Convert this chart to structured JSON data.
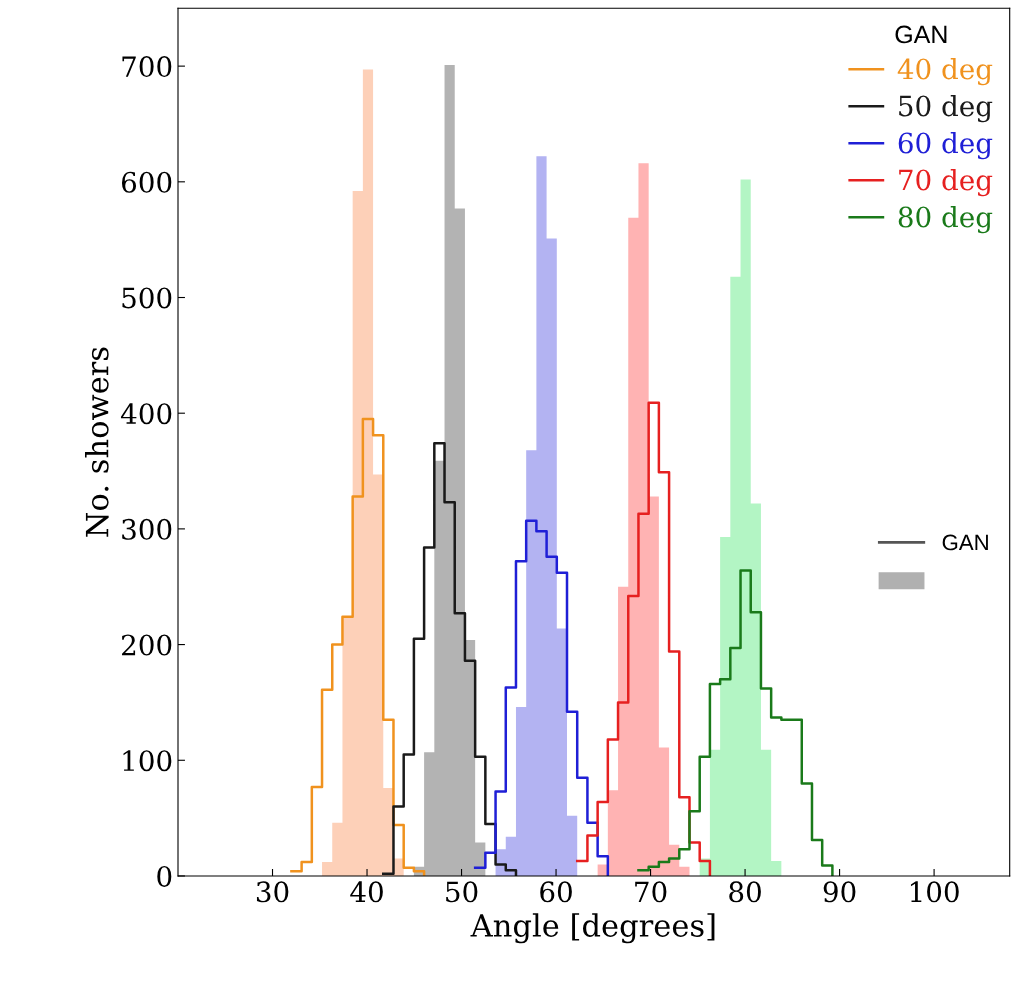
{
  "chart_data": {
    "type": "histogram",
    "xlabel": "Angle [degrees]",
    "ylabel": "No. showers",
    "xlim": [
      20,
      108
    ],
    "ylim": [
      0,
      750
    ],
    "xticks": [
      30,
      40,
      50,
      60,
      70,
      80,
      90,
      100
    ],
    "yticks": [
      0,
      100,
      200,
      300,
      400,
      500,
      600,
      700
    ],
    "legend": "top right",
    "legend_title": "GAN",
    "annotations": [
      "GAN"
    ],
    "grid": false,
    "bins": [
      32.0,
      33.08,
      34.16,
      35.24,
      36.32,
      37.4,
      38.48,
      39.56,
      40.64,
      41.72,
      42.8,
      43.88,
      44.96,
      46.04,
      47.12,
      48.2,
      49.28,
      50.36,
      51.44,
      52.52,
      53.6,
      54.68,
      55.76,
      56.84,
      57.92,
      59.0,
      60.08,
      61.16,
      62.24,
      63.32,
      64.4,
      65.48,
      66.56,
      67.64,
      68.72,
      69.8,
      70.88,
      71.96,
      73.04,
      74.12,
      75.2,
      76.28,
      77.36,
      78.44,
      79.52,
      80.6,
      81.68,
      82.76,
      83.84,
      84.92,
      86.0,
      87.08,
      88.16,
      89.24
    ],
    "series": [
      {
        "color": "#fdd0b8",
        "values": [
          0,
          0,
          0,
          12,
          46,
          224,
          592,
          697,
          347,
          76,
          15,
          0,
          0,
          0,
          0,
          0,
          0,
          0,
          0,
          0,
          0,
          0,
          0,
          0,
          0,
          0,
          0,
          0,
          0,
          0,
          0,
          0,
          0,
          0,
          0,
          0,
          0,
          0,
          0,
          0,
          0,
          0,
          0,
          0,
          0,
          0,
          0,
          0,
          0,
          0,
          0,
          0,
          0
        ]
      },
      {
        "color": "#b3b3b3",
        "values": [
          0,
          0,
          0,
          0,
          0,
          0,
          0,
          0,
          0,
          0,
          0,
          0,
          8,
          107,
          359,
          701,
          577,
          204,
          29,
          0,
          0,
          0,
          0,
          0,
          0,
          0,
          0,
          0,
          0,
          0,
          0,
          0,
          0,
          0,
          0,
          0,
          0,
          0,
          0,
          0,
          0,
          0,
          0,
          0,
          0,
          0,
          0,
          0,
          0,
          0,
          0,
          0,
          0
        ]
      },
      {
        "color": "#b3b3f2",
        "values": [
          0,
          0,
          0,
          0,
          0,
          0,
          0,
          0,
          0,
          0,
          0,
          0,
          0,
          0,
          0,
          0,
          0,
          0,
          0,
          0,
          23,
          34,
          146,
          368,
          622,
          551,
          214,
          52,
          0,
          0,
          0,
          0,
          0,
          0,
          0,
          0,
          0,
          0,
          0,
          0,
          0,
          0,
          0,
          0,
          0,
          0,
          0,
          0,
          0,
          0,
          0,
          0,
          0
        ]
      },
      {
        "color": "#ffb3b3",
        "values": [
          0,
          0,
          0,
          0,
          0,
          0,
          0,
          0,
          0,
          0,
          0,
          0,
          0,
          0,
          0,
          0,
          0,
          0,
          0,
          0,
          0,
          0,
          0,
          0,
          0,
          0,
          0,
          0,
          0,
          0,
          10,
          74,
          250,
          569,
          616,
          328,
          111,
          27,
          8,
          0,
          0,
          0,
          0,
          0,
          0,
          0,
          0,
          0,
          0,
          0,
          0,
          0,
          0
        ]
      },
      {
        "color": "#b3f5c4",
        "values": [
          0,
          0,
          0,
          0,
          0,
          0,
          0,
          0,
          0,
          0,
          0,
          0,
          0,
          0,
          0,
          0,
          0,
          0,
          0,
          0,
          0,
          0,
          0,
          0,
          0,
          0,
          0,
          0,
          0,
          0,
          0,
          0,
          0,
          0,
          0,
          0,
          0,
          0,
          0,
          0,
          15,
          109,
          293,
          518,
          602,
          322,
          109,
          13,
          0,
          0,
          0,
          0,
          0
        ]
      },
      {
        "type": "step",
        "name": "40 deg",
        "color": "#f0921e",
        "x": [
          32.0,
          33.08,
          34.16,
          35.24,
          36.32,
          37.4,
          38.48,
          39.56,
          40.64,
          41.72,
          42.8,
          43.88,
          44.96,
          46.04
        ],
        "values": [
          4,
          12,
          77,
          161,
          200,
          224,
          328,
          395,
          381,
          135,
          44,
          7,
          4,
          0
        ]
      },
      {
        "type": "step",
        "name": "50 deg",
        "color": "#1a1a1a",
        "x": [
          41.72,
          42.8,
          43.88,
          44.96,
          46.04,
          47.12,
          48.2,
          49.28,
          50.36,
          51.44,
          52.52,
          53.6,
          54.68,
          55.76
        ],
        "values": [
          2,
          60,
          105,
          205,
          284,
          374,
          323,
          227,
          186,
          103,
          45,
          10,
          5,
          0
        ]
      },
      {
        "type": "step",
        "name": "60 deg",
        "color": "#1f1fd6",
        "x": [
          51.44,
          52.52,
          53.6,
          54.68,
          55.76,
          56.84,
          57.92,
          59.0,
          60.08,
          61.16,
          62.24,
          63.32,
          64.4,
          65.48
        ],
        "values": [
          7,
          20,
          73,
          163,
          272,
          307,
          298,
          276,
          262,
          142,
          85,
          46,
          17,
          0
        ]
      },
      {
        "type": "step",
        "name": "70 deg",
        "color": "#e62020",
        "x": [
          62.24,
          63.32,
          64.4,
          65.48,
          66.56,
          67.64,
          68.72,
          69.8,
          70.88,
          71.96,
          73.04,
          74.12,
          75.2,
          76.28
        ],
        "values": [
          13,
          35,
          64,
          118,
          150,
          242,
          313,
          409,
          349,
          194,
          68,
          29,
          13,
          0
        ]
      },
      {
        "type": "step",
        "name": "80 deg",
        "color": "#1a7a1a",
        "x": [
          68.72,
          69.8,
          70.88,
          71.96,
          73.04,
          74.12,
          75.2,
          76.28,
          77.36,
          78.44,
          79.52,
          80.6,
          81.68,
          82.76,
          83.84,
          84.92,
          86.0,
          87.08,
          88.16,
          89.24
        ],
        "values": [
          5,
          8,
          12,
          15,
          23,
          56,
          103,
          166,
          170,
          197,
          264,
          228,
          162,
          137,
          135,
          135,
          80,
          31,
          9,
          0
        ]
      }
    ]
  }
}
